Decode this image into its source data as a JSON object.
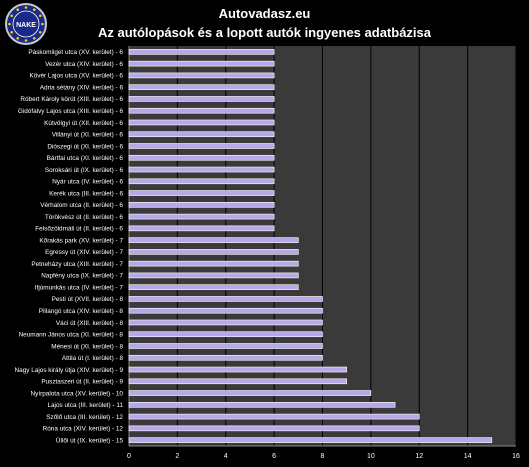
{
  "header": {
    "site": "Autovadasz.eu",
    "subtitle": "Az autólopások és a lopott autók ingyenes adatbázisa",
    "logo_text": "NAKE"
  },
  "colors": {
    "background": "#000000",
    "plot_bg": "#3a3a3a",
    "grid": "#000000",
    "bar_fill": "#b9a8e8",
    "bar_edge": "#ffffff"
  },
  "chart_data": {
    "type": "bar",
    "orientation": "horizontal",
    "title": "",
    "xlabel": "",
    "ylabel": "",
    "xlim": [
      0,
      16
    ],
    "xticks": [
      0,
      2,
      4,
      6,
      8,
      10,
      12,
      14,
      16
    ],
    "grid": true,
    "categories": [
      "Páskomliget utca (XV. kerület) - 6",
      "Vezér utca (XIV. kerület) - 6",
      "Kövér Lajos utca (XV. kerület) - 6",
      "Adria sétány (XIV. kerület) - 6",
      "Róbert Károly körút (XIII. kerület) - 6",
      "Gidófalvy Lajos utca (XIII. kerület) - 6",
      "Kútvölgyi út (XII. kerület) - 6",
      "Villányi út (XI. kerület) - 6",
      "Diószegi út (XI. kerület) - 6",
      "Bártfai utca (XI. kerület) - 6",
      "Soroksári út (IX. kerület) - 6",
      "Nyár utca (IV. kerület) - 6",
      "Kerék utca (III. kerület) - 6",
      "Vérhalom utca (II. kerület) - 6",
      "Törökvész út (II. kerület) - 6",
      "Felsőzöldmáli út (II. kerület) - 6",
      "Kőrakás park (XV. kerület) - 7",
      "Egressy út (XIV. kerület) - 7",
      "Petneházy utca (XIII. kerület) - 7",
      "Napfény utca (IX. kerület) - 7",
      "Ifjúmunkás utca (IV. kerület) - 7",
      "Pesti út (XVII. kerület) - 8",
      "Pillangó utca (XIV. kerület) - 8",
      "Váci út (XIII. kerület) - 8",
      "Neumann János utca (XI. kerület) - 8",
      "Ménesi út (XI. kerület) - 8",
      "Attila út (I. kerület) - 8",
      "Nagy Lajos király útja (XIV. kerület) - 9",
      "Pusztaszeri út (II. kerület) - 9",
      "Nyírpalota utca (XV. kerület) - 10",
      "Lajos utca (III. kerület) - 11",
      "Szőlő utca (III. kerület) - 12",
      "Róna utca (XIV. kerület) - 12",
      "Üllői út (IX. kerület) - 15"
    ],
    "values": [
      6,
      6,
      6,
      6,
      6,
      6,
      6,
      6,
      6,
      6,
      6,
      6,
      6,
      6,
      6,
      6,
      7,
      7,
      7,
      7,
      7,
      8,
      8,
      8,
      8,
      8,
      8,
      9,
      9,
      10,
      11,
      12,
      12,
      15
    ]
  }
}
